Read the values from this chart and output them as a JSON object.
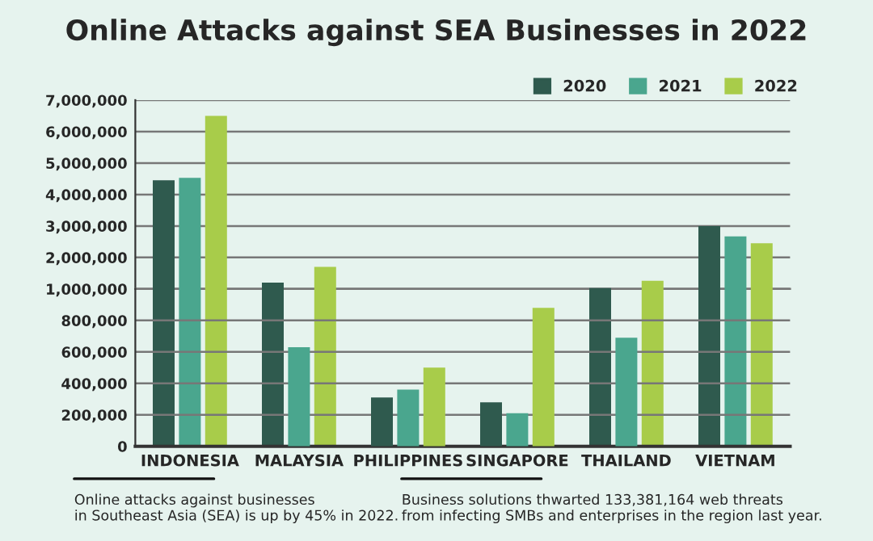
{
  "chart_data": [
    {
      "type": "bar",
      "title": "Online Attacks against SEA Businesses in 2022",
      "series": [
        {
          "name": "2020",
          "color": "#2f5a4e",
          "values": [
            4450000,
            1200000,
            null,
            null,
            1030000,
            3000000
          ]
        },
        {
          "name": "2021",
          "color": "#4aa68e",
          "values": [
            4530000,
            null,
            null,
            null,
            null,
            2670000
          ]
        },
        {
          "name": "2022",
          "color": "#a8cc4a",
          "values": [
            6500000,
            1700000,
            null,
            null,
            1260000,
            2450000
          ]
        }
      ],
      "ylim": [
        1000000,
        7000000
      ],
      "yticks": [
        {
          "value": 1000000,
          "label": "1,000,000"
        },
        {
          "value": 2000000,
          "label": "2,000,000"
        },
        {
          "value": 3000000,
          "label": "3,000,000"
        },
        {
          "value": 4000000,
          "label": "4,000,000"
        },
        {
          "value": 5000000,
          "label": "5,000,000"
        },
        {
          "value": 6000000,
          "label": "6,000,000"
        },
        {
          "value": 7000000,
          "label": "7,000,000"
        }
      ],
      "tick_labels": "y",
      "grid": "y",
      "legend": "top right"
    },
    {
      "type": "bar",
      "categories": [
        "INDONESIA",
        "MALAYSIA",
        "PHILIPPINES",
        "SINGAPORE",
        "THAILAND",
        "VIETNAM"
      ],
      "series": [
        {
          "color": "#2f5a4e",
          "values": [
            null,
            null,
            310000,
            280000,
            null,
            null
          ]
        },
        {
          "color": "#4aa68e",
          "values": [
            null,
            630000,
            360000,
            210000,
            690000,
            null
          ]
        },
        {
          "color": "#a8cc4a",
          "values": [
            null,
            null,
            500000,
            880000,
            null,
            null
          ]
        }
      ],
      "ylim": [
        0,
        1000000
      ],
      "yticks": [
        0,
        {
          "value": 200000,
          "label": "200,000"
        },
        {
          "value": 400000,
          "label": "400,000"
        },
        {
          "value": 600000,
          "label": "600,000"
        },
        {
          "value": 800000,
          "label": "800,000"
        }
      ],
      "grid": "y",
      "annotations": [
        "Online attacks against businesses\nin Southeast Asia (SEA) is up by 45% in 2022.",
        "Business solutions thwarted 133,381,164 web threats\nfrom infecting SMBs and enterprises in the region last year."
      ]
    }
  ]
}
